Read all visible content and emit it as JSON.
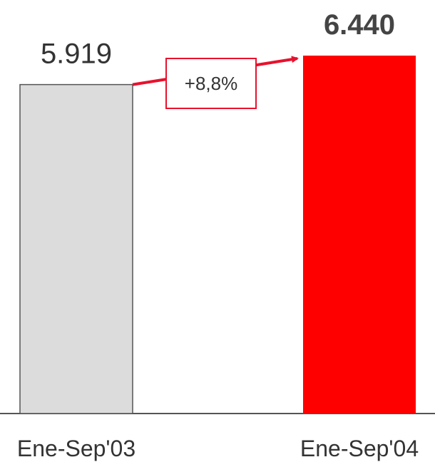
{
  "chart_data": {
    "type": "bar",
    "categories": [
      "Ene-Sep'03",
      "Ene-Sep'04"
    ],
    "values": [
      5919,
      6440
    ],
    "value_labels": [
      "5.919",
      "6.440"
    ],
    "change_label": "+8,8%",
    "colors": [
      "#dcdcdc",
      "#ff0000"
    ],
    "bar_border_color": "#555555",
    "arrow_color": "#e8112d",
    "value_label_colors": [
      "#333333",
      "#444444"
    ],
    "value_label_bold": [
      false,
      true
    ],
    "ylim": [
      0,
      6440
    ],
    "grid": false,
    "legend": "none"
  }
}
